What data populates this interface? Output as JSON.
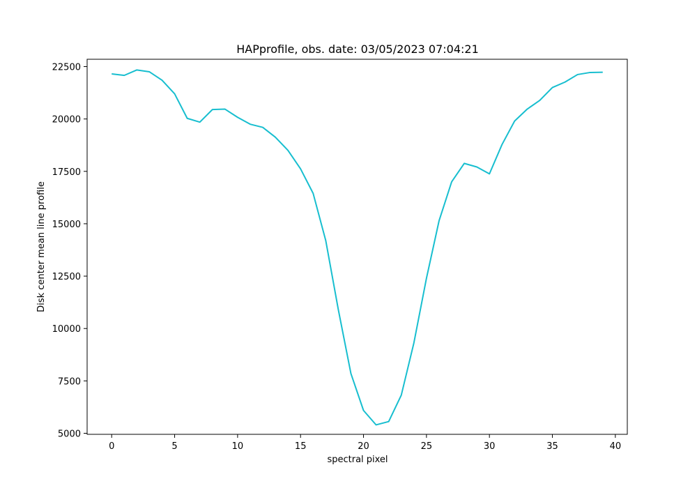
{
  "chart_data": {
    "type": "line",
    "title": "HAPprofile, obs. date: 03/05/2023 07:04:21",
    "xlabel": "spectral pixel",
    "ylabel": "Disk center mean line profile",
    "xlim": [
      -1.95,
      40.95
    ],
    "ylim": [
      4950,
      22850
    ],
    "xticks": [
      0,
      5,
      10,
      15,
      20,
      25,
      30,
      35,
      40
    ],
    "yticks": [
      5000,
      7500,
      10000,
      12500,
      15000,
      17500,
      20000,
      22500
    ],
    "grid": false,
    "legend": "none",
    "series": [
      {
        "color": "#17becf",
        "x": [
          0,
          1,
          2,
          3,
          4,
          5,
          6,
          7,
          8,
          9,
          10,
          11,
          12,
          13,
          14,
          15,
          16,
          17,
          18,
          19,
          20,
          21,
          22,
          23,
          24,
          25,
          26,
          27,
          28,
          29,
          30,
          31,
          32,
          33,
          34,
          35,
          36,
          37,
          38,
          39
        ],
        "values": [
          22150,
          22080,
          22340,
          22250,
          21850,
          21200,
          20030,
          19850,
          20450,
          20470,
          20080,
          19750,
          19600,
          19130,
          18500,
          17620,
          16450,
          14200,
          10900,
          7850,
          6090,
          5400,
          5560,
          6820,
          9310,
          12400,
          15140,
          17000,
          17880,
          17710,
          17380,
          18780,
          19900,
          20470,
          20890,
          21500,
          21760,
          22120,
          22220,
          22230
        ]
      }
    ]
  }
}
